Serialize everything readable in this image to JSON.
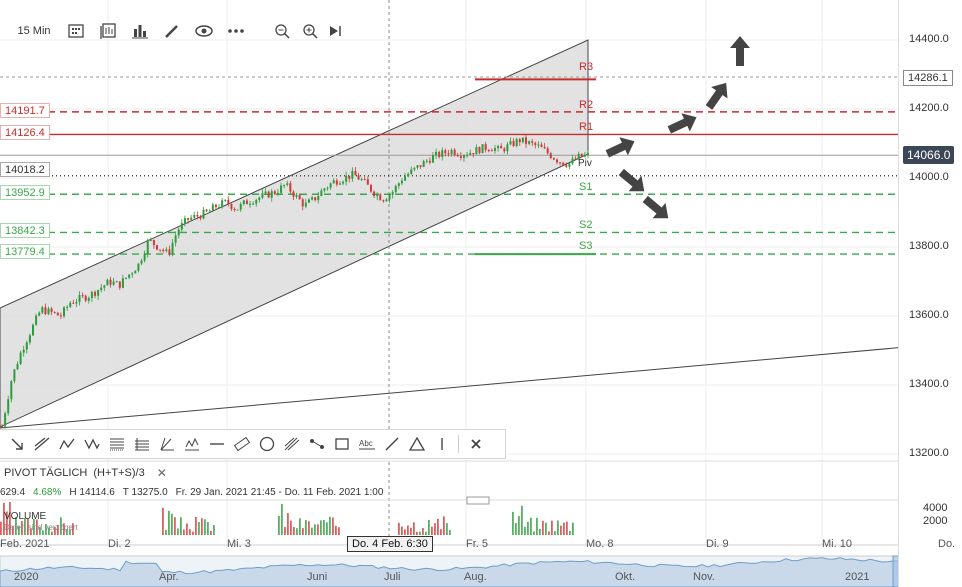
{
  "toolbar": {
    "interval": "15 Min",
    "icons": [
      "candles-icon",
      "compare-icon",
      "indicator-icon",
      "pencil-icon",
      "eye-icon",
      "more-icon",
      "zoom-out-icon",
      "zoom-in-icon",
      "play-icon"
    ]
  },
  "price_axis": {
    "ticks": [
      "14400.0",
      "14200.0",
      "14000.0",
      "13800.0",
      "13600.0",
      "13400.0",
      "13200.0"
    ],
    "marked_price": "14286.1",
    "last_price": "14066.0",
    "volume_ticks": [
      "4000",
      "2000"
    ]
  },
  "left_price_labels": {
    "r2": "14191.7",
    "r1": "14126.4",
    "pivot": "14018.2",
    "s1": "13952.9",
    "s2": "13842.3",
    "s3": "13779.4"
  },
  "levels": {
    "r3": "R3",
    "r2": "R2",
    "r1": "R1",
    "pivot": "Piv",
    "s1": "S1",
    "s2": "S2",
    "s3": "S3"
  },
  "pivot_panel": {
    "title": "PIVOT TÄGLICH",
    "formula": "(H+T+S)/3",
    "close_icon": "close-icon",
    "change": "629.4",
    "change_pct": "4.68%",
    "high": "H 14114.6",
    "low": "T 13275.0",
    "range": "Fr. 29 Jan. 2021 21:45 - Do. 11 Feb. 2021 1:00"
  },
  "volume_panel": {
    "title": "VOLUME",
    "subtitle": "Daten sind verzögert"
  },
  "time_axis": {
    "labels": [
      "Feb. 2021",
      "Di. 2",
      "Mi. 3",
      "Fr. 5",
      "Mo. 8",
      "Di. 9",
      "Mi. 10",
      "Do."
    ],
    "crosshair": "Do. 4 Feb. 6:30"
  },
  "navigator": {
    "labels": [
      "2020",
      "Apr.",
      "Juni",
      "Juli",
      "Aug.",
      "Okt.",
      "Nov.",
      "2021"
    ]
  },
  "drawing_tools": [
    "arrow-tool-icon",
    "ray-tool-icon",
    "polyline-tool-icon",
    "wave-tool-icon",
    "fib-grid-icon",
    "fib-fan-icon",
    "angle-tool-icon",
    "elliott-tool-icon",
    "horizontal-line-icon",
    "ruler-icon",
    "circle-icon",
    "pitchfork-icon",
    "path-tool-icon",
    "rectangle-icon",
    "text-tool-icon",
    "line-tool-icon",
    "triangle-icon",
    "vertical-line-icon",
    "close-icon"
  ],
  "chart_data": {
    "type": "candlestick",
    "yrange": [
      13100,
      14460
    ],
    "price_levels": {
      "r3": 14286,
      "r2": 14191.7,
      "r1": 14126.4,
      "pivot": 14018.2,
      "s1": 13952.9,
      "s2": 13842.3,
      "s3": 13779.4
    },
    "close_series": [
      13280,
      13420,
      13500,
      13560,
      13620,
      13610,
      13600,
      13640,
      13650,
      13660,
      13680,
      13700,
      13690,
      13720,
      13750,
      13820,
      13800,
      13780,
      13850,
      13880,
      13890,
      13900,
      13920,
      13930,
      13910,
      13930,
      13940,
      13950,
      13960,
      13980,
      13950,
      13920,
      13940,
      13970,
      13990,
      14000,
      14010,
      13990,
      13960,
      13940,
      13960,
      14000,
      14020,
      14040,
      14060,
      14070,
      14080,
      14070,
      14075,
      14085,
      14090,
      14080,
      14095,
      14110,
      14100,
      14090,
      14070,
      14050,
      14040,
      14060,
      14066
    ],
    "colors": {
      "up": "#2e9b3c",
      "down": "#d23a3a",
      "resistance": "#cc2b2b",
      "support": "#3aa84a",
      "channel_fill": "#dcdcdc"
    }
  }
}
